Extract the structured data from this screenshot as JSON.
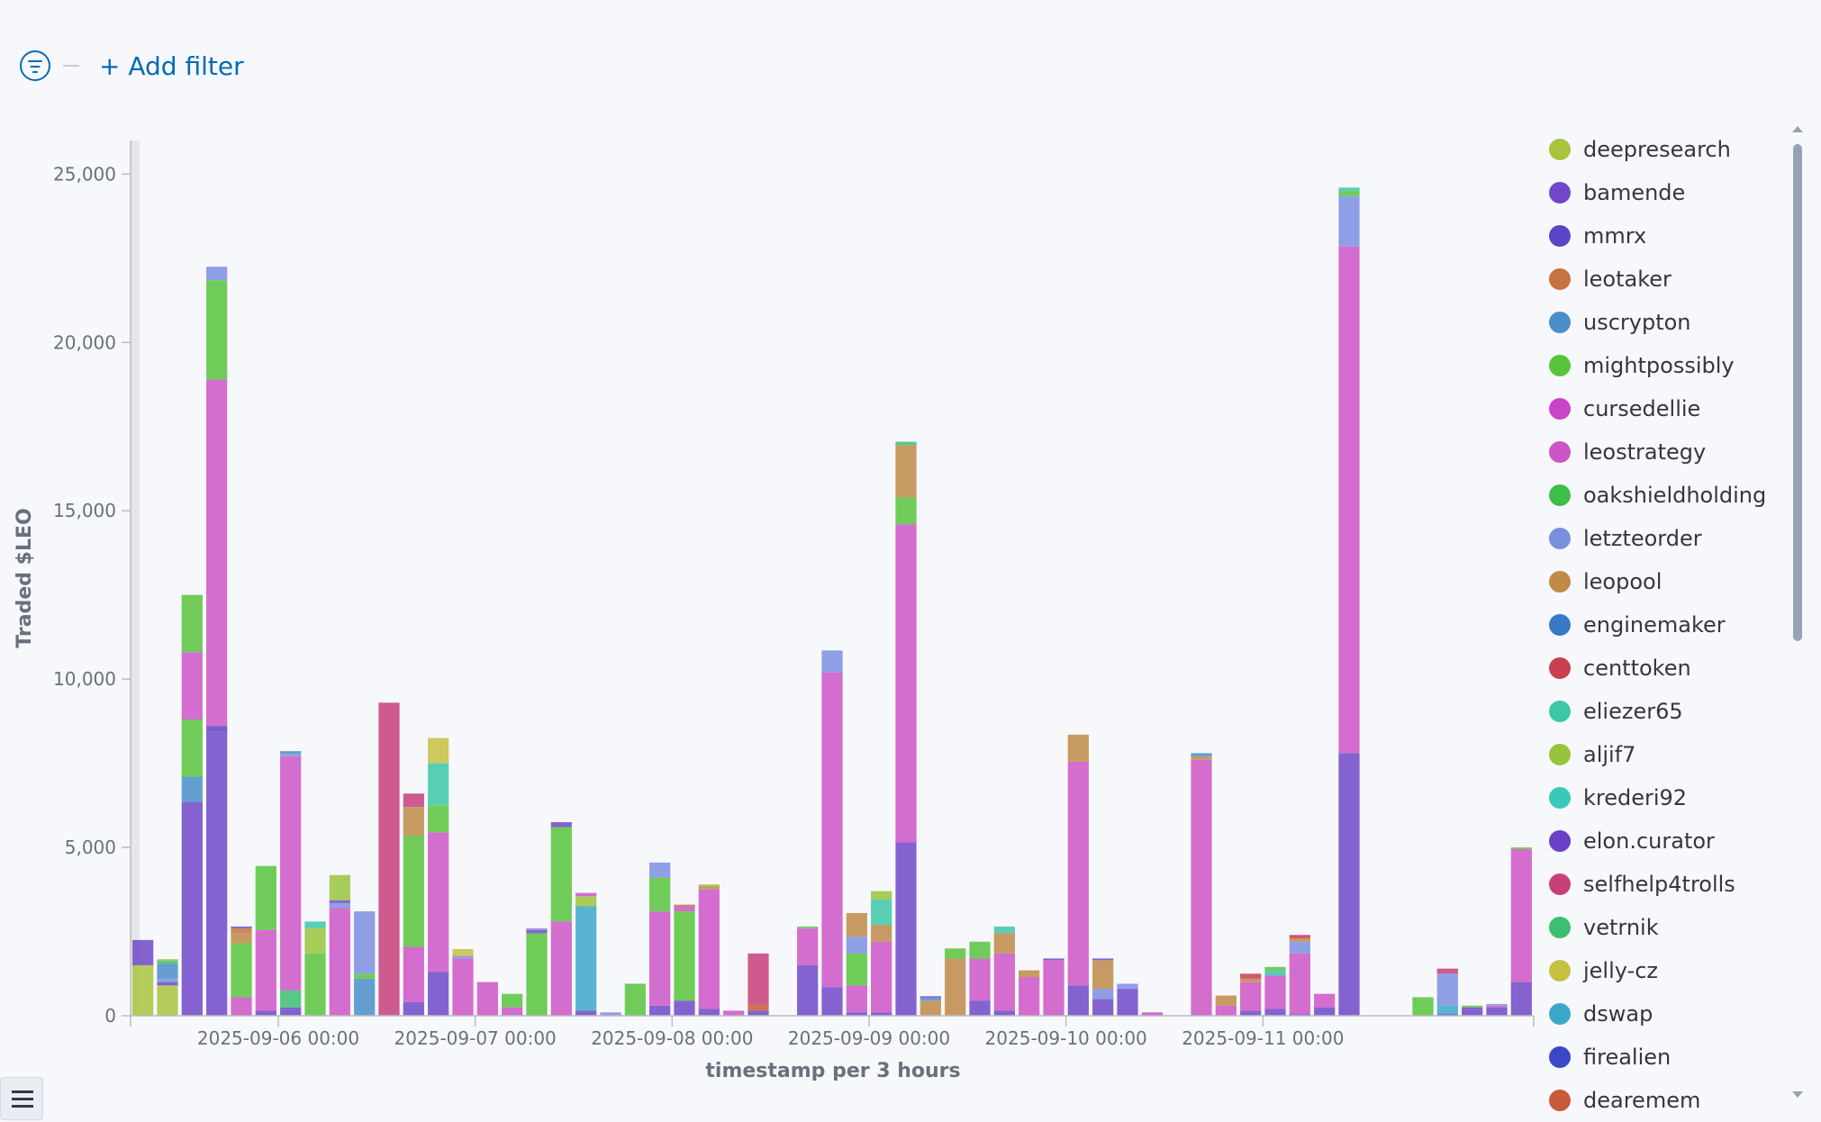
{
  "filter": {
    "add_label": "+ Add filter"
  },
  "icons": {
    "filter": "filter-circle-icon",
    "legend_toggle": "list-icon",
    "scroll_up": "triangle-up-icon",
    "scroll_down": "triangle-down-icon"
  },
  "chart_data": {
    "type": "bar",
    "stacked": true,
    "xlabel": "timestamp per 3 hours",
    "ylabel": "Traded $LEO",
    "ylim": [
      0,
      26000
    ],
    "yticks": [
      0,
      5000,
      10000,
      15000,
      20000,
      25000
    ],
    "ytick_labels": [
      "0",
      "5,000",
      "10,000",
      "15,000",
      "20,000",
      "25,000"
    ],
    "xlim": [
      "2025-09-05 06:00",
      "2025-09-12 09:00"
    ],
    "xticks": [
      "2025-09-06 00:00",
      "2025-09-07 00:00",
      "2025-09-08 00:00",
      "2025-09-09 00:00",
      "2025-09-10 00:00",
      "2025-09-11 00:00"
    ],
    "grid": false,
    "legend_position": "right",
    "legend": [
      "deepresearch",
      "bamende",
      "mmrx",
      "leotaker",
      "uscrypton",
      "mightpossibly",
      "cursedellie",
      "leostrategy",
      "oakshieldholding",
      "letzteorder",
      "leopool",
      "enginemaker",
      "centtoken",
      "eliezer65",
      "aljif7",
      "krederi92",
      "elon.curator",
      "selfhelp4trolls",
      "vetrnik",
      "jelly-cz",
      "dswap",
      "firealien",
      "dearemem"
    ],
    "series_colors": {
      "deepresearch": "#a8c43c",
      "bamende": "#7048c8",
      "mmrx": "#5a45c8",
      "leotaker": "#c6733f",
      "uscrypton": "#4a8fc8",
      "mightpossibly": "#58c43c",
      "cursedellie": "#c844c8",
      "leostrategy": "#cc55c6",
      "oakshieldholding": "#3cc048",
      "letzteorder": "#7b8fe0",
      "leopool": "#c08a48",
      "enginemaker": "#3a78c8",
      "centtoken": "#c84050",
      "eliezer65": "#3cc8a8",
      "aljif7": "#98c43c",
      "krederi92": "#3cc8b8",
      "elon.curator": "#6a40c8",
      "selfhelp4trolls": "#c8407a",
      "vetrnik": "#3cc070",
      "jelly-cz": "#c8c040",
      "dswap": "#3ca8c8",
      "firealien": "#3a48c8",
      "dearemem": "#c85a3c"
    },
    "bars": [
      {
        "x": "2025-09-05 06:00",
        "stack": [
          [
            "deepresearch",
            1500
          ],
          [
            "bamende",
            750
          ]
        ]
      },
      {
        "x": "2025-09-05 09:00",
        "stack": [
          [
            "deepresearch",
            900
          ],
          [
            "bamende",
            100
          ],
          [
            "letzteorder",
            100
          ],
          [
            "uscrypton",
            450
          ],
          [
            "vetrnik",
            80
          ],
          [
            "aljif7",
            50
          ]
        ]
      },
      {
        "x": "2025-09-05 12:00",
        "stack": [
          [
            "bamende",
            6350
          ],
          [
            "uscrypton",
            750
          ],
          [
            "mightpossibly",
            1700
          ],
          [
            "leostrategy",
            2000
          ],
          [
            "mightpossibly",
            1700
          ]
        ]
      },
      {
        "x": "2025-09-05 15:00",
        "stack": [
          [
            "bamende",
            8450
          ],
          [
            "mmrx",
            150
          ],
          [
            "leostrategy",
            10300
          ],
          [
            "mightpossibly",
            2950
          ],
          [
            "letzteorder",
            400
          ]
        ]
      },
      {
        "x": "2025-09-05 18:00",
        "stack": [
          [
            "leostrategy",
            550
          ],
          [
            "mightpossibly",
            1600
          ],
          [
            "leopool",
            300
          ],
          [
            "leotaker",
            150
          ],
          [
            "bamende",
            50
          ]
        ]
      },
      {
        "x": "2025-09-05 21:00",
        "stack": [
          [
            "bamende",
            150
          ],
          [
            "leostrategy",
            2400
          ],
          [
            "mightpossibly",
            1900
          ]
        ]
      },
      {
        "x": "2025-09-06 00:00",
        "stack": [
          [
            "bamende",
            250
          ],
          [
            "vetrnik",
            500
          ],
          [
            "leostrategy",
            6950
          ],
          [
            "letzteorder",
            80
          ],
          [
            "uscrypton",
            80
          ]
        ]
      },
      {
        "x": "2025-09-06 03:00",
        "stack": [
          [
            "mightpossibly",
            1850
          ],
          [
            "aljif7",
            750
          ],
          [
            "eliezer65",
            200
          ]
        ]
      },
      {
        "x": "2025-09-06 06:00",
        "stack": [
          [
            "leostrategy",
            3200
          ],
          [
            "letzteorder",
            150
          ],
          [
            "bamende",
            80
          ],
          [
            "aljif7",
            750
          ]
        ]
      },
      {
        "x": "2025-09-06 09:00",
        "stack": [
          [
            "uscrypton",
            1100
          ],
          [
            "mightpossibly",
            150
          ],
          [
            "letzteorder",
            1850
          ]
        ]
      },
      {
        "x": "2025-09-06 12:00",
        "stack": [
          [
            "selfhelp4trolls",
            9300
          ]
        ]
      },
      {
        "x": "2025-09-06 15:00",
        "stack": [
          [
            "bamende",
            400
          ],
          [
            "leostrategy",
            1650
          ],
          [
            "mightpossibly",
            3300
          ],
          [
            "leopool",
            850
          ],
          [
            "selfhelp4trolls",
            400
          ]
        ]
      },
      {
        "x": "2025-09-06 18:00",
        "stack": [
          [
            "bamende",
            1300
          ],
          [
            "leostrategy",
            4150
          ],
          [
            "mightpossibly",
            800
          ],
          [
            "eliezer65",
            1250
          ],
          [
            "jelly-cz",
            750
          ]
        ]
      },
      {
        "x": "2025-09-06 21:00",
        "stack": [
          [
            "leostrategy",
            1700
          ],
          [
            "letzteorder",
            80
          ],
          [
            "jelly-cz",
            200
          ]
        ]
      },
      {
        "x": "2025-09-07 00:00",
        "stack": [
          [
            "leostrategy",
            1000
          ]
        ]
      },
      {
        "x": "2025-09-07 03:00",
        "stack": [
          [
            "leostrategy",
            250
          ],
          [
            "mightpossibly",
            400
          ]
        ]
      },
      {
        "x": "2025-09-07 06:00",
        "stack": [
          [
            "mightpossibly",
            2450
          ],
          [
            "bamende",
            100
          ],
          [
            "letzteorder",
            50
          ]
        ]
      },
      {
        "x": "2025-09-07 09:00",
        "stack": [
          [
            "leostrategy",
            2800
          ],
          [
            "mightpossibly",
            2800
          ],
          [
            "bamende",
            150
          ]
        ]
      },
      {
        "x": "2025-09-07 12:00",
        "stack": [
          [
            "bamende",
            150
          ],
          [
            "dswap",
            3100
          ],
          [
            "aljif7",
            300
          ],
          [
            "leostrategy",
            100
          ]
        ]
      },
      {
        "x": "2025-09-07 15:00",
        "stack": [
          [
            "letzteorder",
            100
          ]
        ]
      },
      {
        "x": "2025-09-07 18:00",
        "stack": [
          [
            "mightpossibly",
            950
          ]
        ]
      },
      {
        "x": "2025-09-07 21:00",
        "stack": [
          [
            "bamende",
            300
          ],
          [
            "leostrategy",
            2800
          ],
          [
            "mightpossibly",
            1000
          ],
          [
            "letzteorder",
            450
          ]
        ]
      },
      {
        "x": "2025-09-08 00:00",
        "stack": [
          [
            "bamende",
            450
          ],
          [
            "mightpossibly",
            2650
          ],
          [
            "leostrategy",
            150
          ],
          [
            "leotaker",
            50
          ]
        ]
      },
      {
        "x": "2025-09-08 03:00",
        "stack": [
          [
            "bamende",
            200
          ],
          [
            "leostrategy",
            3550
          ],
          [
            "leopool",
            100
          ],
          [
            "aljif7",
            50
          ]
        ]
      },
      {
        "x": "2025-09-08 06:00",
        "stack": [
          [
            "leostrategy",
            150
          ]
        ]
      },
      {
        "x": "2025-09-08 09:00",
        "stack": [
          [
            "bamende",
            150
          ],
          [
            "dearemem",
            200
          ],
          [
            "selfhelp4trolls",
            1500
          ]
        ]
      },
      {
        "x": "2025-09-08 15:00",
        "stack": [
          [
            "bamende",
            1500
          ],
          [
            "leostrategy",
            1100
          ],
          [
            "mightpossibly",
            50
          ]
        ]
      },
      {
        "x": "2025-09-08 18:00",
        "stack": [
          [
            "bamende",
            850
          ],
          [
            "leostrategy",
            9350
          ],
          [
            "letzteorder",
            650
          ]
        ]
      },
      {
        "x": "2025-09-08 21:00",
        "stack": [
          [
            "bamende",
            100
          ],
          [
            "leostrategy",
            800
          ],
          [
            "mightpossibly",
            950
          ],
          [
            "letzteorder",
            500
          ],
          [
            "leopool",
            700
          ]
        ]
      },
      {
        "x": "2025-09-09 00:00",
        "stack": [
          [
            "bamende",
            100
          ],
          [
            "leostrategy",
            2100
          ],
          [
            "leopool",
            500
          ],
          [
            "eliezer65",
            750
          ],
          [
            "aljif7",
            250
          ]
        ]
      },
      {
        "x": "2025-09-09 03:00",
        "stack": [
          [
            "bamende",
            5150
          ],
          [
            "leostrategy",
            9450
          ],
          [
            "mightpossibly",
            800
          ],
          [
            "leopool",
            1550
          ],
          [
            "vetrnik",
            100
          ]
        ]
      },
      {
        "x": "2025-09-09 06:00",
        "stack": [
          [
            "leopool",
            450
          ],
          [
            "uscrypton",
            80
          ],
          [
            "bamende",
            50
          ]
        ]
      },
      {
        "x": "2025-09-09 09:00",
        "stack": [
          [
            "leopool",
            1700
          ],
          [
            "mightpossibly",
            300
          ]
        ]
      },
      {
        "x": "2025-09-09 12:00",
        "stack": [
          [
            "bamende",
            450
          ],
          [
            "leostrategy",
            1250
          ],
          [
            "mightpossibly",
            500
          ]
        ]
      },
      {
        "x": "2025-09-09 15:00",
        "stack": [
          [
            "bamende",
            150
          ],
          [
            "leostrategy",
            1700
          ],
          [
            "leopool",
            600
          ],
          [
            "eliezer65",
            200
          ]
        ]
      },
      {
        "x": "2025-09-09 18:00",
        "stack": [
          [
            "leostrategy",
            1150
          ],
          [
            "leopool",
            200
          ]
        ]
      },
      {
        "x": "2025-09-09 21:00",
        "stack": [
          [
            "leostrategy",
            1650
          ],
          [
            "bamende",
            50
          ]
        ]
      },
      {
        "x": "2025-09-10 00:00",
        "stack": [
          [
            "bamende",
            900
          ],
          [
            "leostrategy",
            6650
          ],
          [
            "leopool",
            800
          ]
        ]
      },
      {
        "x": "2025-09-10 03:00",
        "stack": [
          [
            "bamende",
            500
          ],
          [
            "letzteorder",
            300
          ],
          [
            "leopool",
            850
          ],
          [
            "bamende",
            50
          ]
        ]
      },
      {
        "x": "2025-09-10 06:00",
        "stack": [
          [
            "bamende",
            800
          ],
          [
            "letzteorder",
            150
          ]
        ]
      },
      {
        "x": "2025-09-10 09:00",
        "stack": [
          [
            "leostrategy",
            100
          ]
        ]
      },
      {
        "x": "2025-09-10 15:00",
        "stack": [
          [
            "leostrategy",
            7600
          ],
          [
            "leopool",
            100
          ],
          [
            "uscrypton",
            100
          ]
        ]
      },
      {
        "x": "2025-09-10 18:00",
        "stack": [
          [
            "leostrategy",
            300
          ],
          [
            "leopool",
            300
          ]
        ]
      },
      {
        "x": "2025-09-10 21:00",
        "stack": [
          [
            "bamende",
            150
          ],
          [
            "leostrategy",
            850
          ],
          [
            "leopool",
            100
          ],
          [
            "centtoken",
            150
          ]
        ]
      },
      {
        "x": "2025-09-11 00:00",
        "stack": [
          [
            "bamende",
            200
          ],
          [
            "leostrategy",
            1000
          ],
          [
            "eliezer65",
            150
          ],
          [
            "mightpossibly",
            100
          ]
        ]
      },
      {
        "x": "2025-09-11 03:00",
        "stack": [
          [
            "bamende",
            50
          ],
          [
            "leostrategy",
            1800
          ],
          [
            "letzteorder",
            350
          ],
          [
            "leopool",
            100
          ],
          [
            "centtoken",
            100
          ]
        ]
      },
      {
        "x": "2025-09-11 06:00",
        "stack": [
          [
            "bamende",
            250
          ],
          [
            "leostrategy",
            400
          ]
        ]
      },
      {
        "x": "2025-09-11 09:00",
        "stack": [
          [
            "bamende",
            7800
          ],
          [
            "leostrategy",
            15050
          ],
          [
            "letzteorder",
            1500
          ],
          [
            "mightpossibly",
            150
          ],
          [
            "eliezer65",
            100
          ]
        ]
      },
      {
        "x": "2025-09-11 18:00",
        "stack": [
          [
            "mightpossibly",
            550
          ]
        ]
      },
      {
        "x": "2025-09-11 21:00",
        "stack": [
          [
            "bamende",
            50
          ],
          [
            "dswap",
            250
          ],
          [
            "letzteorder",
            950
          ],
          [
            "selfhelp4trolls",
            150
          ]
        ]
      },
      {
        "x": "2025-09-12 00:00",
        "stack": [
          [
            "bamende",
            250
          ],
          [
            "mightpossibly",
            50
          ]
        ]
      },
      {
        "x": "2025-09-12 03:00",
        "stack": [
          [
            "bamende",
            250
          ],
          [
            "leostrategy",
            50
          ],
          [
            "letzteorder",
            50
          ]
        ]
      },
      {
        "x": "2025-09-12 06:00",
        "stack": [
          [
            "bamende",
            1000
          ],
          [
            "leostrategy",
            3950
          ],
          [
            "mightpossibly",
            50
          ]
        ]
      }
    ]
  }
}
